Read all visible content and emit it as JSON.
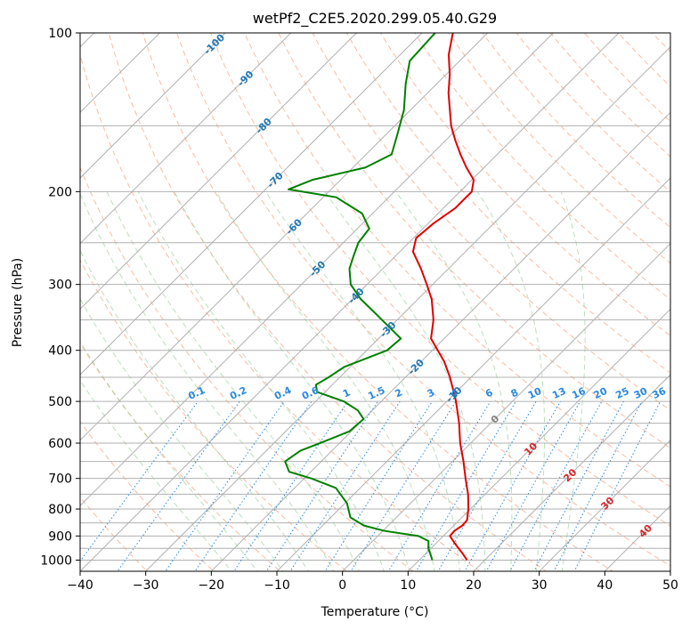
{
  "chart_data": {
    "type": "line",
    "diagram": "Skew-T log-P",
    "title": "wetPf2_C2E5.2020.299.05.40.G29",
    "xlabel": "Temperature (°C)",
    "ylabel": "Pressure (hPa)",
    "xlim": [
      -40,
      50
    ],
    "ylim": [
      1050,
      100
    ],
    "y_scale": "log",
    "grid": true,
    "x_ticks": [
      -40,
      -30,
      -20,
      -10,
      0,
      10,
      20,
      30,
      40,
      50
    ],
    "y_ticks": [
      100,
      200,
      300,
      400,
      500,
      600,
      700,
      800,
      900,
      1000
    ],
    "x_tick_labels": [
      "−40",
      "−30",
      "−20",
      "−10",
      "0",
      "10",
      "20",
      "30",
      "40",
      "50"
    ],
    "y_tick_labels": [
      "100",
      "200",
      "300",
      "400",
      "500",
      "600",
      "700",
      "800",
      "900",
      "1000"
    ],
    "isotherm_labels": [
      "-100",
      "-90",
      "-80",
      "-70",
      "-60",
      "-50",
      "-40",
      "-30",
      "-20",
      "-10",
      "0",
      "10",
      "20",
      "30",
      "40"
    ],
    "mixing_ratio_labels": [
      "0.1",
      "0.2",
      "0.4",
      "0.6",
      "1",
      "1.5",
      "2",
      "3",
      "4",
      "6",
      "8",
      "10",
      "13",
      "16",
      "20",
      "25",
      "30",
      "36"
    ],
    "series": [
      {
        "role": "temperature",
        "color": "#e00000",
        "points": [
          {
            "p": 1000,
            "t": 17.3
          },
          {
            "p": 970,
            "t": 15.5
          },
          {
            "p": 930,
            "t": 12.9
          },
          {
            "p": 900,
            "t": 11.0
          },
          {
            "p": 880,
            "t": 10.9
          },
          {
            "p": 860,
            "t": 11.3
          },
          {
            "p": 840,
            "t": 11.2
          },
          {
            "p": 800,
            "t": 9.7
          },
          {
            "p": 750,
            "t": 7.4
          },
          {
            "p": 700,
            "t": 4.6
          },
          {
            "p": 650,
            "t": 1.7
          },
          {
            "p": 600,
            "t": -1.6
          },
          {
            "p": 550,
            "t": -4.8
          },
          {
            "p": 500,
            "t": -8.6
          },
          {
            "p": 450,
            "t": -13.2
          },
          {
            "p": 420,
            "t": -16.5
          },
          {
            "p": 380,
            "t": -22.0
          },
          {
            "p": 350,
            "t": -24.5
          },
          {
            "p": 320,
            "t": -27.9
          },
          {
            "p": 300,
            "t": -30.9
          },
          {
            "p": 280,
            "t": -34.2
          },
          {
            "p": 260,
            "t": -38.0
          },
          {
            "p": 245,
            "t": -39.6
          },
          {
            "p": 230,
            "t": -39.2
          },
          {
            "p": 215,
            "t": -38.2
          },
          {
            "p": 200,
            "t": -38.2
          },
          {
            "p": 190,
            "t": -39.7
          },
          {
            "p": 180,
            "t": -42.7
          },
          {
            "p": 170,
            "t": -45.6
          },
          {
            "p": 160,
            "t": -48.5
          },
          {
            "p": 150,
            "t": -51.4
          },
          {
            "p": 140,
            "t": -54.0
          },
          {
            "p": 130,
            "t": -56.8
          },
          {
            "p": 120,
            "t": -59.4
          },
          {
            "p": 110,
            "t": -62.6
          },
          {
            "p": 100,
            "t": -65.3
          }
        ]
      },
      {
        "role": "dewpoint",
        "color": "#008000",
        "points": [
          {
            "p": 1000,
            "t": 12.0
          },
          {
            "p": 950,
            "t": 9.6
          },
          {
            "p": 920,
            "t": 8.5
          },
          {
            "p": 900,
            "t": 6.2
          },
          {
            "p": 880,
            "t": 0.2
          },
          {
            "p": 860,
            "t": -3.7
          },
          {
            "p": 830,
            "t": -7.0
          },
          {
            "p": 780,
            "t": -9.7
          },
          {
            "p": 730,
            "t": -13.7
          },
          {
            "p": 700,
            "t": -18.9
          },
          {
            "p": 680,
            "t": -23.3
          },
          {
            "p": 650,
            "t": -25.5
          },
          {
            "p": 620,
            "t": -24.8
          },
          {
            "p": 600,
            "t": -23.0
          },
          {
            "p": 570,
            "t": -20.3
          },
          {
            "p": 540,
            "t": -20.0
          },
          {
            "p": 520,
            "t": -22.2
          },
          {
            "p": 500,
            "t": -25.7
          },
          {
            "p": 480,
            "t": -31.2
          },
          {
            "p": 465,
            "t": -32.5
          },
          {
            "p": 450,
            "t": -31.7
          },
          {
            "p": 430,
            "t": -30.9
          },
          {
            "p": 400,
            "t": -26.9
          },
          {
            "p": 380,
            "t": -26.6
          },
          {
            "p": 360,
            "t": -30.4
          },
          {
            "p": 340,
            "t": -34.4
          },
          {
            "p": 320,
            "t": -38.7
          },
          {
            "p": 300,
            "t": -42.5
          },
          {
            "p": 280,
            "t": -45.1
          },
          {
            "p": 265,
            "t": -46.4
          },
          {
            "p": 250,
            "t": -47.7
          },
          {
            "p": 235,
            "t": -48.2
          },
          {
            "p": 220,
            "t": -51.6
          },
          {
            "p": 205,
            "t": -58.0
          },
          {
            "p": 198,
            "t": -66.5
          },
          {
            "p": 190,
            "t": -64.3
          },
          {
            "p": 180,
            "t": -58.1
          },
          {
            "p": 170,
            "t": -56.1
          },
          {
            "p": 155,
            "t": -58.4
          },
          {
            "p": 140,
            "t": -61.0
          },
          {
            "p": 125,
            "t": -64.7
          },
          {
            "p": 113,
            "t": -67.6
          },
          {
            "p": 100,
            "t": -68.0
          }
        ]
      }
    ]
  }
}
